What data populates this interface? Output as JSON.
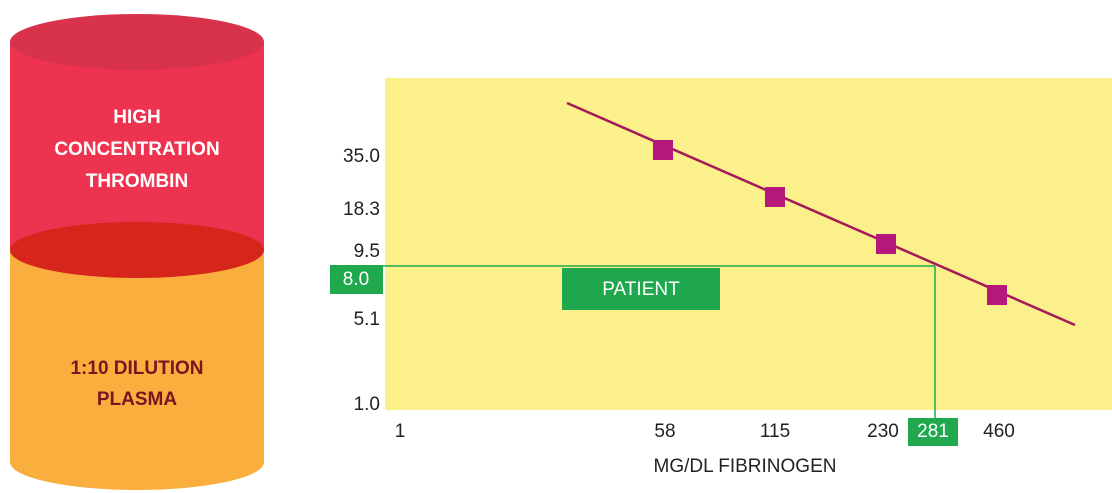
{
  "cylinder": {
    "top_label": [
      "HIGH",
      "CONCENTRATION",
      "THROMBIN"
    ],
    "bottom_label": [
      "1:10 DILUTION",
      "PLASMA"
    ]
  },
  "graph": {
    "y_labels": [
      "35.0",
      "18.3",
      "9.5",
      "5.1",
      "1.0"
    ],
    "x_labels": [
      "1",
      "58",
      "115",
      "230",
      "460"
    ],
    "patient_y": "8.0",
    "patient_x": "281",
    "patient_label": "PATIENT",
    "x_axis_title": "MG/DL FIBRINOGEN"
  }
}
